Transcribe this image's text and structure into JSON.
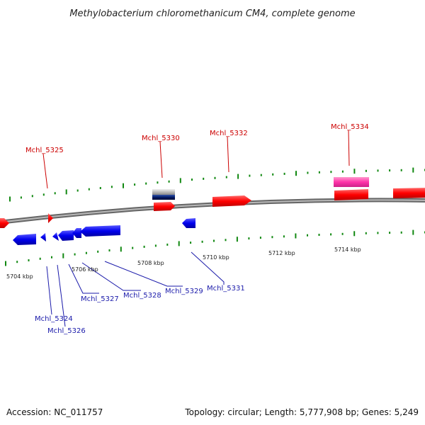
{
  "title": "Methylobacterium chloromethanicum CM4, complete genome",
  "footer": {
    "accession": "Accession: NC_011757",
    "summary": "Topology: circular; Length: 5,777,908 bp; Genes: 5,249"
  },
  "axis_labels": [
    "5704 kbp",
    "5706 kbp",
    "5708 kbp",
    "5710 kbp",
    "5712 kbp",
    "5714 kbp"
  ],
  "forward_labels": [
    "Mchl_5325",
    "Mchl_5330",
    "Mchl_5332",
    "Mchl_5334"
  ],
  "reverse_labels": [
    "Mchl_5324",
    "Mchl_5326",
    "Mchl_5327",
    "Mchl_5328",
    "Mchl_5329",
    "Mchl_5331"
  ],
  "colors": {
    "forward_gene": "#ff0000",
    "reverse_gene": "#0000ee",
    "rna_gene": "#ff33aa",
    "pseudo_gene": "#b0b0b0",
    "tick": "#118811",
    "backbone": "#888888",
    "forward_label": "#cc0000",
    "reverse_label": "#1a1aaa"
  }
}
